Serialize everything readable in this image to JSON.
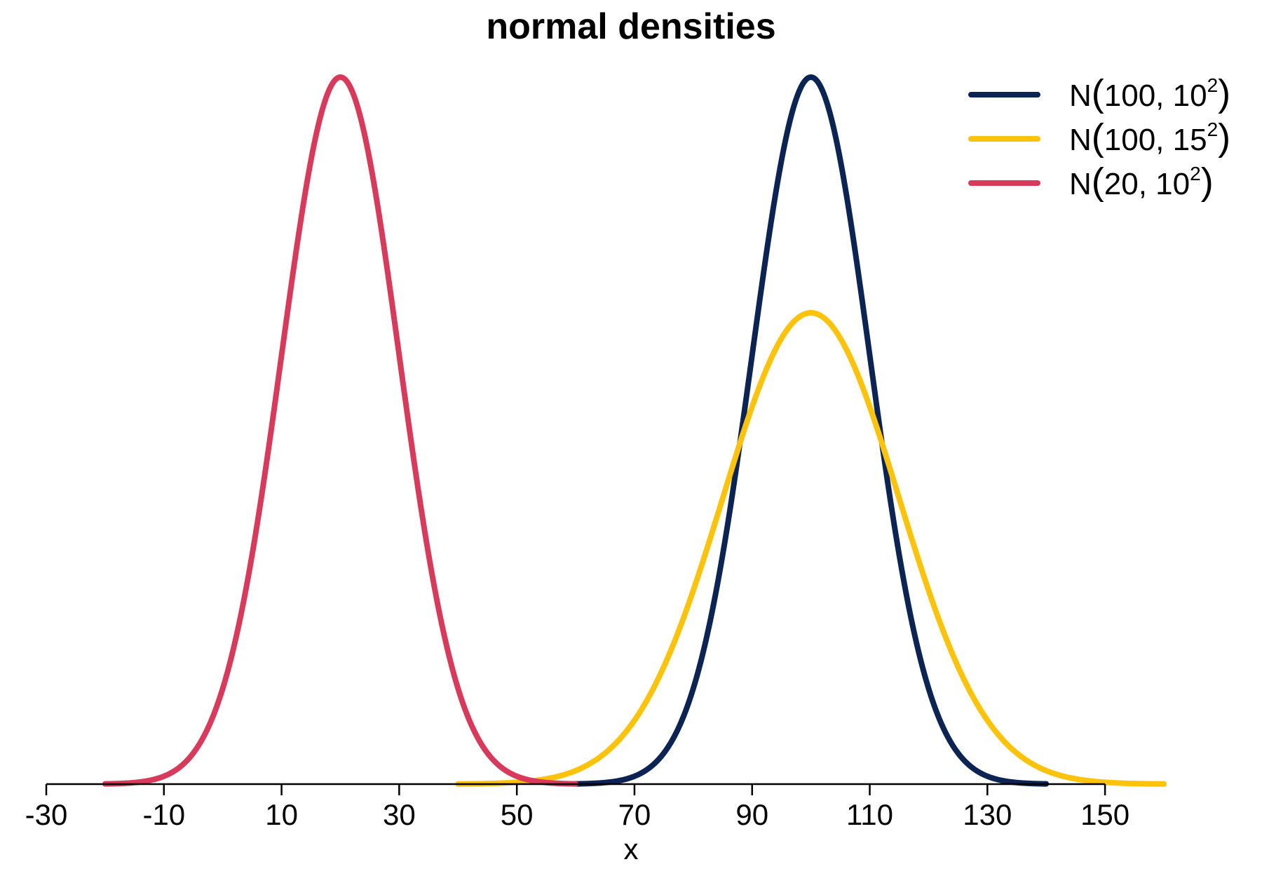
{
  "chart_data": {
    "type": "line",
    "title": "normal densities",
    "xlabel": "x",
    "ylabel": "",
    "xlim": [
      -30,
      160
    ],
    "x_ticks": [
      -30,
      -10,
      10,
      30,
      50,
      70,
      90,
      110,
      130,
      150
    ],
    "x_tick_labels": [
      "-30",
      "-10",
      "10",
      "30",
      "50",
      "70",
      "90",
      "110",
      "130",
      "150"
    ],
    "y_axis_shown": false,
    "grid": false,
    "legend_position": "top-right",
    "series": [
      {
        "name": "N(100, 10^2)",
        "legend": {
          "prefix": "N",
          "args": "100, 10",
          "exponent": "2"
        },
        "mean": 100,
        "sd": 10,
        "x_range": [
          60,
          140
        ],
        "color": "#0b2454"
      },
      {
        "name": "N(100, 15^2)",
        "legend": {
          "prefix": "N",
          "args": "100, 15",
          "exponent": "2"
        },
        "mean": 100,
        "sd": 15,
        "x_range": [
          40,
          160
        ],
        "color": "#fcc30a"
      },
      {
        "name": "N(20, 10^2)",
        "legend": {
          "prefix": "N",
          "args": "20, 10",
          "exponent": "2"
        },
        "mean": 20,
        "sd": 10,
        "x_range": [
          -20,
          60
        ],
        "color": "#d93a5b"
      }
    ]
  }
}
